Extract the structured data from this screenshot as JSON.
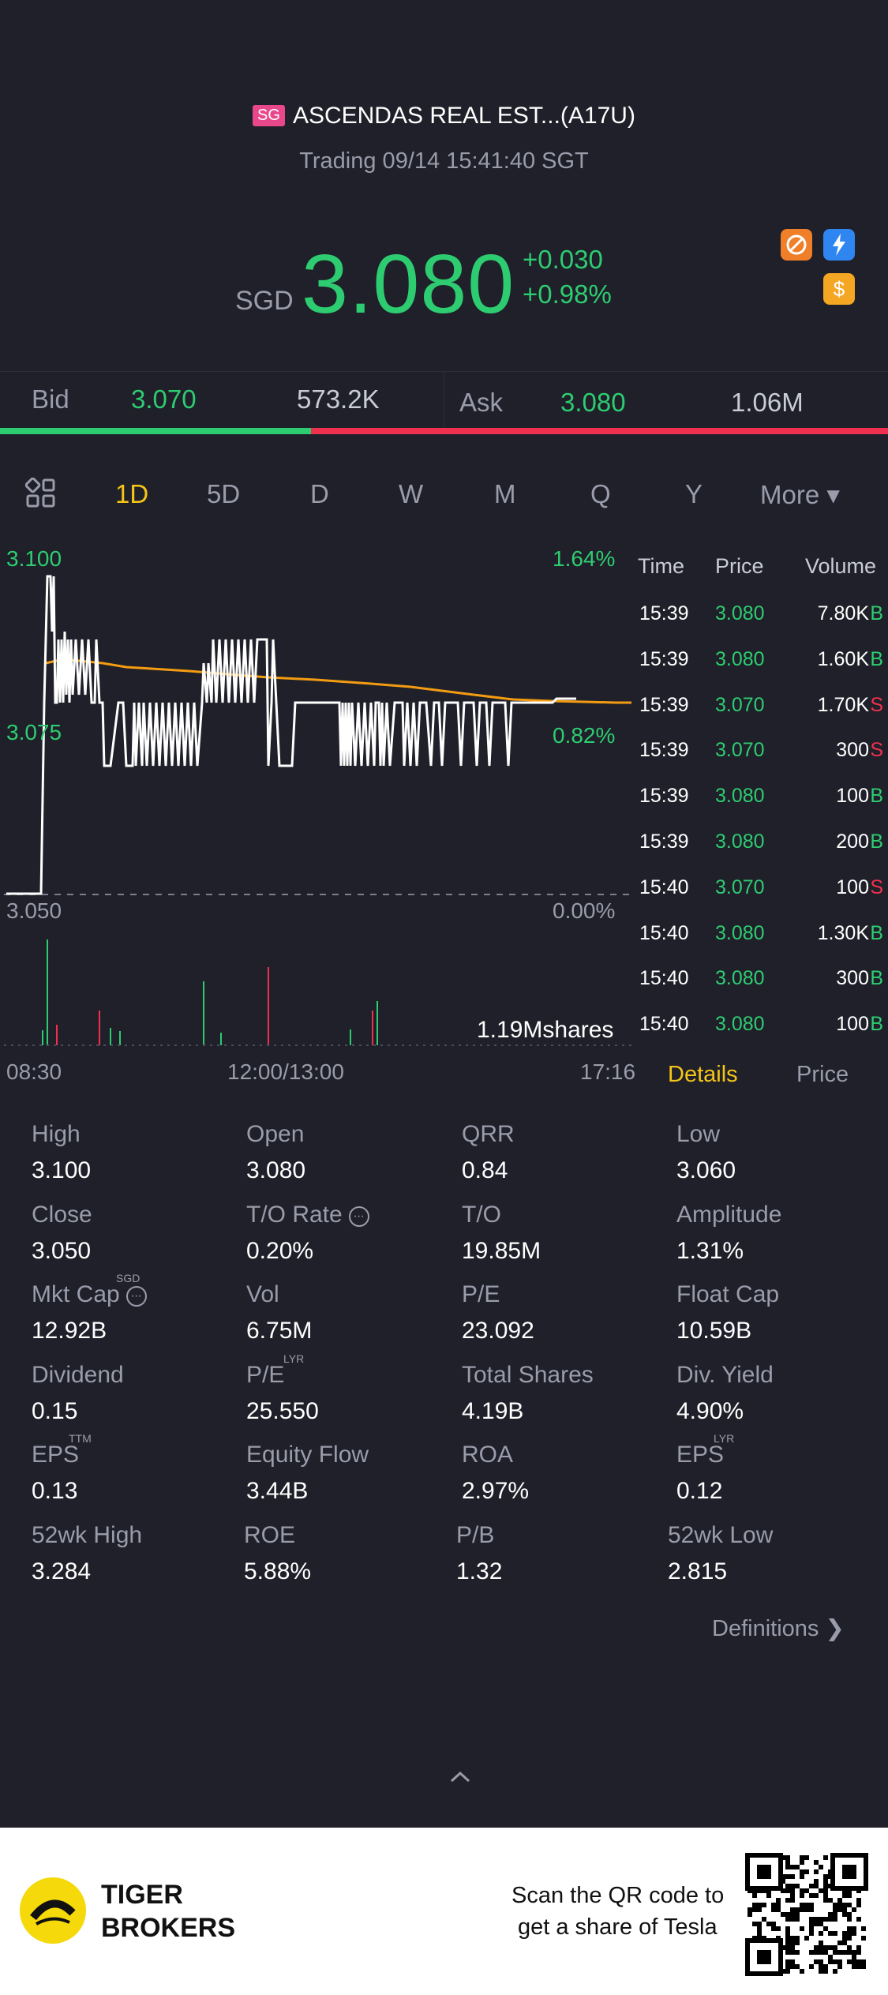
{
  "header": {
    "badge": "SG",
    "title": "ASCENDAS REAL EST...(A17U)",
    "status": "Trading 09/14 15:41:40 SGT",
    "currency": "SGD",
    "price": "3.080",
    "change": "+0.030",
    "change_pct": "+0.98%"
  },
  "bidask": {
    "bid_label": "Bid",
    "bid_price": "3.070",
    "bid_vol": "573.2K",
    "ask_label": "Ask",
    "ask_price": "3.080",
    "ask_vol": "1.06M",
    "bid_share": 0.35
  },
  "tabs": [
    "1D",
    "5D",
    "D",
    "W",
    "M",
    "Q",
    "Y",
    "More ▾"
  ],
  "active_tab": "1D",
  "chart_data": {
    "type": "line",
    "y_labels": [
      "3.100",
      "3.075",
      "3.050"
    ],
    "pct_labels": [
      "1.64%",
      "0.82%",
      "0.00%"
    ],
    "x_labels": [
      "08:30",
      "12:00/13:00",
      "17:16"
    ],
    "volume_label": "1.19Mshares",
    "ylim": [
      3.05,
      3.1
    ]
  },
  "trades": {
    "headers": [
      "Time",
      "Price",
      "Volume"
    ],
    "rows": [
      {
        "time": "15:39",
        "price": "3.080",
        "vol": "7.80K",
        "side": "B"
      },
      {
        "time": "15:39",
        "price": "3.080",
        "vol": "1.60K",
        "side": "B"
      },
      {
        "time": "15:39",
        "price": "3.070",
        "vol": "1.70K",
        "side": "S"
      },
      {
        "time": "15:39",
        "price": "3.070",
        "vol": "300",
        "side": "S"
      },
      {
        "time": "15:39",
        "price": "3.080",
        "vol": "100",
        "side": "B"
      },
      {
        "time": "15:39",
        "price": "3.080",
        "vol": "200",
        "side": "B"
      },
      {
        "time": "15:40",
        "price": "3.070",
        "vol": "100",
        "side": "S"
      },
      {
        "time": "15:40",
        "price": "3.080",
        "vol": "1.30K",
        "side": "B"
      },
      {
        "time": "15:40",
        "price": "3.080",
        "vol": "300",
        "side": "B"
      },
      {
        "time": "15:40",
        "price": "3.080",
        "vol": "100",
        "side": "B"
      }
    ]
  },
  "detail_tabs": {
    "details": "Details",
    "price": "Price"
  },
  "stats": [
    {
      "label": "High",
      "value": "3.100"
    },
    {
      "label": "Open",
      "value": "3.080"
    },
    {
      "label": "QRR",
      "value": "0.84"
    },
    {
      "label": "Low",
      "value": "3.060"
    },
    {
      "label": "Close",
      "value": "3.050"
    },
    {
      "label": "T/O Rate",
      "value": "0.20%"
    },
    {
      "label": "T/O",
      "value": "19.85M"
    },
    {
      "label": "Amplitude",
      "value": "1.31%"
    },
    {
      "label": "Mkt Cap",
      "value": "12.92B",
      "sup": "SGD"
    },
    {
      "label": "Vol",
      "value": "6.75M"
    },
    {
      "label": "P/E",
      "value": "23.092"
    },
    {
      "label": "Float Cap",
      "value": "10.59B"
    },
    {
      "label": "Dividend",
      "value": "0.15"
    },
    {
      "label": "P/E",
      "value": "25.550",
      "sup": "LYR"
    },
    {
      "label": "Total Shares",
      "value": "4.19B"
    },
    {
      "label": "Div. Yield",
      "value": "4.90%"
    },
    {
      "label": "EPS",
      "value": "0.13",
      "sup": "TTM"
    },
    {
      "label": "Equity Flow",
      "value": "3.44B"
    },
    {
      "label": "ROA",
      "value": "2.97%"
    },
    {
      "label": "EPS",
      "value": "0.12",
      "sup": "LYR"
    },
    {
      "label": "52wk High",
      "value": "3.284"
    },
    {
      "label": "ROE",
      "value": "5.88%"
    },
    {
      "label": "P/B",
      "value": "1.32"
    },
    {
      "label": "52wk Low",
      "value": "2.815"
    }
  ],
  "definitions": "Definitions",
  "footer": {
    "brand_line1": "TIGER",
    "brand_line2": "BROKERS",
    "promo_line1": "Scan the QR code to",
    "promo_line2": "get a share of Tesla"
  },
  "colors": {
    "up": "#2ecc71",
    "down": "#f0304f",
    "accent": "#f5c518",
    "bg": "#1f2029"
  }
}
